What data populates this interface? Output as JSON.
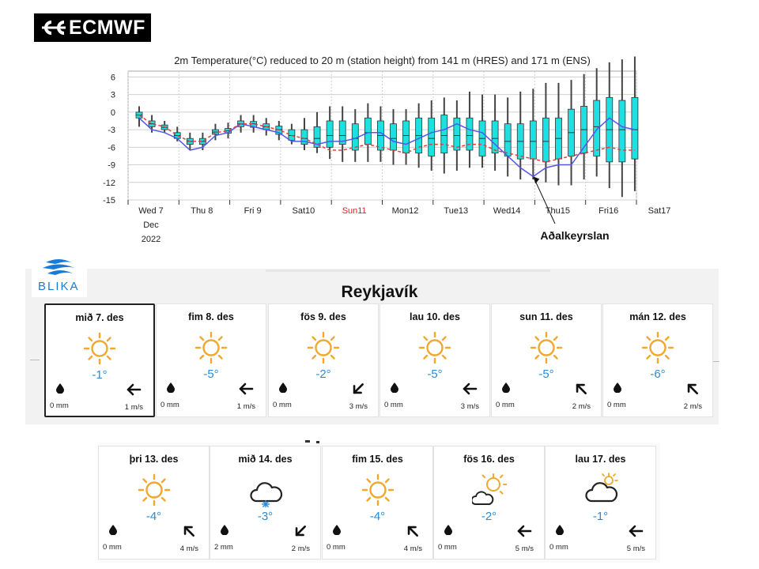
{
  "ecmwf_logo": {
    "text": "ECMWF"
  },
  "chart_data": {
    "type": "boxplot",
    "title": "2m Temperature(°C) reduced to 20 m (station height) from 141 m (HRES) and 171 m (ENS)",
    "xlabel": "",
    "ylabel": "",
    "ylim": [
      -15,
      7
    ],
    "yticks": [
      6,
      3,
      0,
      -3,
      -6,
      -9,
      -12,
      -15
    ],
    "x_range": [
      0,
      10
    ],
    "xticks": [
      {
        "label": "Wed 7",
        "x": 0,
        "color": "#222222"
      },
      {
        "label": "Thu 8",
        "x": 1,
        "color": "#222222"
      },
      {
        "label": "Fri 9",
        "x": 2,
        "color": "#222222"
      },
      {
        "label": "Sat10",
        "x": 3,
        "color": "#222222"
      },
      {
        "label": "Sun11",
        "x": 4,
        "color": "#e02020"
      },
      {
        "label": "Mon12",
        "x": 5,
        "color": "#222222"
      },
      {
        "label": "Tue13",
        "x": 6,
        "color": "#222222"
      },
      {
        "label": "Wed14",
        "x": 7,
        "color": "#222222"
      },
      {
        "label": "Thu15",
        "x": 8,
        "color": "#222222"
      },
      {
        "label": "Fri16",
        "x": 9,
        "color": "#222222"
      },
      {
        "label": "Sat17",
        "x": 10,
        "color": "#222222"
      }
    ],
    "date_sublabels": [
      "Dec",
      "2022"
    ],
    "grid": true,
    "ens_boxes": {
      "name": "ENS",
      "x": [
        0,
        0.25,
        0.5,
        0.75,
        1.0,
        1.25,
        1.5,
        1.75,
        2.0,
        2.25,
        2.5,
        2.75,
        3.0,
        3.25,
        3.5,
        3.75,
        4.0,
        4.25,
        4.5,
        4.75,
        5.0,
        5.25,
        5.5,
        5.75,
        6.0,
        6.25,
        6.5,
        6.75,
        7.0,
        7.25,
        7.5,
        7.75,
        8.0,
        8.25,
        8.5,
        8.75,
        9.0,
        9.25,
        9.5,
        9.75
      ],
      "whisker_low": [
        -2.5,
        -3.5,
        -3.5,
        -5.0,
        -6.5,
        -6.5,
        -4.8,
        -4.5,
        -3.5,
        -3.5,
        -4.0,
        -4.8,
        -5.5,
        -6.5,
        -7.0,
        -8.0,
        -8.5,
        -8.5,
        -8.5,
        -8.5,
        -9.0,
        -9.0,
        -9.5,
        -10.0,
        -10.5,
        -10.0,
        -9.5,
        -9.5,
        -10.0,
        -11.0,
        -11.5,
        -11.5,
        -12.0,
        -12.5,
        -12.5,
        -11.5,
        -11.0,
        -13.0,
        -14.5,
        -13.5
      ],
      "box_low": [
        -1.0,
        -2.5,
        -3.0,
        -4.5,
        -5.5,
        -5.5,
        -3.8,
        -3.6,
        -2.5,
        -2.6,
        -3.0,
        -3.8,
        -4.8,
        -5.5,
        -6.0,
        -6.0,
        -5.5,
        -6.5,
        -5.5,
        -6.5,
        -6.5,
        -7.0,
        -7.0,
        -7.5,
        -7.0,
        -6.5,
        -6.5,
        -7.5,
        -7.0,
        -7.5,
        -8.0,
        -8.0,
        -8.5,
        -8.0,
        -7.5,
        -7.0,
        -7.5,
        -8.5,
        -8.5,
        -8.0
      ],
      "box_high": [
        0.0,
        -1.5,
        -2.2,
        -3.5,
        -4.5,
        -4.5,
        -3.0,
        -2.8,
        -1.5,
        -1.6,
        -2.0,
        -2.4,
        -3.0,
        -3.0,
        -2.5,
        -1.5,
        -1.5,
        -2.0,
        -1.0,
        -1.5,
        -2.0,
        -1.5,
        -1.0,
        -1.0,
        -0.5,
        -1.0,
        -1.0,
        -1.5,
        -1.5,
        -2.0,
        -2.0,
        -1.5,
        -1.0,
        -1.0,
        0.5,
        1.0,
        2.0,
        2.5,
        2.0,
        2.5
      ],
      "whisker_high": [
        1.0,
        -0.5,
        -1.5,
        -2.5,
        -3.5,
        -3.5,
        -2.0,
        -1.8,
        -0.5,
        -0.5,
        -1.0,
        -1.5,
        -2.0,
        -1.0,
        0.0,
        1.0,
        1.0,
        0.5,
        1.5,
        1.0,
        0.5,
        0.5,
        1.5,
        2.0,
        2.5,
        2.0,
        3.5,
        3.0,
        3.0,
        2.5,
        3.5,
        4.0,
        5.0,
        5.0,
        5.5,
        6.5,
        7.5,
        8.5,
        9.0,
        9.5
      ],
      "median": [
        -0.5,
        -2.0,
        -2.6,
        -4.0,
        -5.0,
        -5.0,
        -3.4,
        -3.2,
        -2.0,
        -2.0,
        -2.5,
        -3.0,
        -4.0,
        -4.5,
        -4.5,
        -4.0,
        -4.0,
        -4.5,
        -3.5,
        -4.0,
        -4.5,
        -4.0,
        -4.0,
        -4.5,
        -4.0,
        -4.0,
        -4.0,
        -4.5,
        -4.5,
        -5.0,
        -5.0,
        -5.0,
        -5.0,
        -4.5,
        -3.5,
        -3.0,
        -2.5,
        -3.0,
        -3.0,
        -3.0
      ],
      "box_color": "#1de0e0",
      "whisker_color": "#444444"
    },
    "series": [
      {
        "type": "line",
        "color": "#5555ee",
        "x": [
          0,
          0.25,
          0.5,
          0.75,
          1.0,
          1.25,
          1.5,
          1.75,
          2.0,
          2.25,
          2.5,
          2.75,
          3.0,
          3.25,
          3.5,
          3.75,
          4.0,
          4.25,
          4.5,
          4.75,
          5.0,
          5.25,
          5.5,
          5.75,
          6.0,
          6.25,
          6.5,
          6.75,
          7.0,
          7.25,
          7.5,
          7.75,
          8.0,
          8.25,
          8.5,
          8.75,
          9.0,
          9.25,
          9.5,
          9.75
        ],
        "values": [
          -1.0,
          -3.0,
          -3.5,
          -4.5,
          -6.5,
          -6.0,
          -4.0,
          -3.5,
          -2.0,
          -2.5,
          -3.0,
          -3.5,
          -5.0,
          -5.0,
          -5.5,
          -5.0,
          -5.0,
          -4.5,
          -3.5,
          -3.5,
          -5.0,
          -5.5,
          -4.5,
          -3.5,
          -3.0,
          -2.0,
          -3.0,
          -3.5,
          -5.5,
          -7.5,
          -9.5,
          -11.0,
          -9.5,
          -9.0,
          -9.0,
          -6.0,
          -3.0,
          -1.0,
          -2.5,
          -3.0
        ]
      },
      {
        "type": "line",
        "color": "#e04040",
        "dashed": true,
        "x": [
          0,
          0.25,
          0.5,
          0.75,
          1.0,
          1.25,
          1.5,
          1.75,
          2.0,
          2.25,
          2.5,
          2.75,
          3.0,
          3.25,
          3.5,
          3.75,
          4.0,
          4.25,
          4.5,
          4.75,
          5.0,
          5.25,
          5.5,
          5.75,
          6.0,
          6.25,
          6.5,
          6.75,
          7.0,
          7.25,
          7.5,
          7.75,
          8.0,
          8.25,
          8.5,
          8.75,
          9.0,
          9.25,
          9.5,
          9.75
        ],
        "values": [
          -0.5,
          -2.0,
          -2.5,
          -4.0,
          -5.0,
          -5.0,
          -3.5,
          -3.2,
          -2.0,
          -2.0,
          -2.5,
          -3.0,
          -4.0,
          -4.5,
          -5.5,
          -6.5,
          -6.5,
          -6.0,
          -5.5,
          -6.0,
          -6.5,
          -7.0,
          -6.0,
          -5.5,
          -5.5,
          -6.0,
          -5.5,
          -5.5,
          -6.5,
          -7.0,
          -7.5,
          -8.0,
          -8.5,
          -8.0,
          -7.5,
          -7.0,
          -6.5,
          -6.0,
          -6.5,
          -6.5
        ]
      }
    ],
    "annotation": {
      "text": "Aðalkeyrslan",
      "x": 7.75,
      "y": -11
    }
  },
  "blika": {
    "logo_text": "BLIKA",
    "city": "Reykjavík",
    "days": [
      {
        "label": "mið 7. des",
        "temp": "-1°",
        "rain": "0 mm",
        "wind": "1 m/s",
        "icon": "sun-icon",
        "wind_dir": "left-arrow-icon",
        "selected": true
      },
      {
        "label": "fim 8. des",
        "temp": "-5°",
        "rain": "0 mm",
        "wind": "1 m/s",
        "icon": "sun-icon",
        "wind_dir": "left-arrow-icon"
      },
      {
        "label": "fös 9. des",
        "temp": "-2°",
        "rain": "0 mm",
        "wind": "3 m/s",
        "icon": "sun-icon",
        "wind_dir": "down-left-arrow-icon"
      },
      {
        "label": "lau 10. des",
        "temp": "-5°",
        "rain": "0 mm",
        "wind": "3 m/s",
        "icon": "sun-icon",
        "wind_dir": "left-arrow-icon"
      },
      {
        "label": "sun 11. des",
        "temp": "-5°",
        "rain": "0 mm",
        "wind": "2 m/s",
        "icon": "sun-icon",
        "wind_dir": "up-left-arrow-icon"
      },
      {
        "label": "mán 12. des",
        "temp": "-6°",
        "rain": "0 mm",
        "wind": "2 m/s",
        "icon": "sun-icon",
        "wind_dir": "up-left-arrow-icon"
      },
      {
        "label": "þri 13. des",
        "temp": "-4°",
        "rain": "0 mm",
        "wind": "4 m/s",
        "icon": "sun-icon",
        "wind_dir": "up-left-arrow-icon"
      },
      {
        "label": "mið 14. des",
        "temp": "-3°",
        "rain": "2 mm",
        "wind": "2 m/s",
        "icon": "cloud-snow-icon",
        "wind_dir": "down-left-arrow-icon"
      },
      {
        "label": "fim 15. des",
        "temp": "-4°",
        "rain": "0 mm",
        "wind": "4 m/s",
        "icon": "sun-icon",
        "wind_dir": "up-left-arrow-icon"
      },
      {
        "label": "fös 16. des",
        "temp": "-2°",
        "rain": "0 mm",
        "wind": "5 m/s",
        "icon": "sun-cloud-icon",
        "wind_dir": "left-arrow-icon"
      },
      {
        "label": "lau 17. des",
        "temp": "-1°",
        "rain": "0 mm",
        "wind": "5 m/s",
        "icon": "cloud-sun-icon",
        "wind_dir": "left-arrow-icon"
      }
    ]
  },
  "colors": {
    "temp": "#2b8bd6",
    "sun": "#f0a830",
    "box": "#1de0e0",
    "hres": "#5555ee",
    "ens_median": "#e04040"
  }
}
